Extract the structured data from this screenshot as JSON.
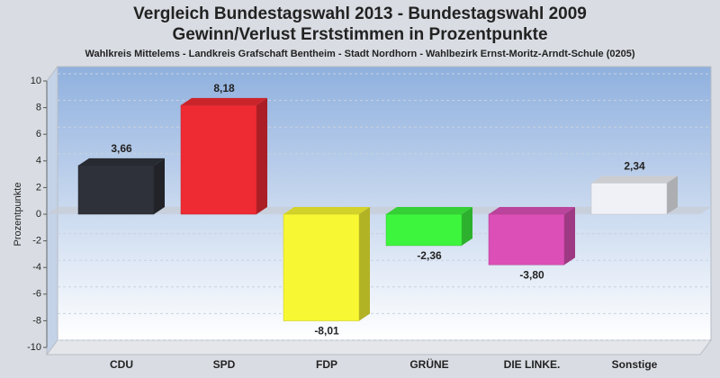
{
  "chart_data": {
    "type": "bar3d",
    "title": [
      "Vergleich Bundestagswahl 2013 - Bundestagswahl 2009",
      "Gewinn/Verlust Erststimmen in Prozentpunkte"
    ],
    "subtitle": "Wahlkreis Mittelems - Landkreis Grafschaft Bentheim - Stadt Nordhorn - Wahlbezirk Ernst-Moritz-Arndt-Schule (0205)",
    "ylabel": "Prozentpunkte",
    "categories": [
      "CDU",
      "SPD",
      "FDP",
      "GRÜNE",
      "DIE LINKE.",
      "Sonstige"
    ],
    "values": [
      3.66,
      8.18,
      -8.01,
      -2.36,
      -3.8,
      2.34
    ],
    "value_labels": [
      "3,66",
      "8,18",
      "-8,01",
      "-2,36",
      "-3,80",
      "2,34"
    ],
    "colors": [
      "#2e3139",
      "#ee2a33",
      "#f7f733",
      "#3ef53e",
      "#db4fb6",
      "#eff1f6"
    ],
    "ylim": [
      -10,
      10
    ],
    "yticks": [
      -10,
      -8,
      -6,
      -4,
      -2,
      0,
      2,
      4,
      6,
      8,
      10
    ],
    "grid": true
  }
}
